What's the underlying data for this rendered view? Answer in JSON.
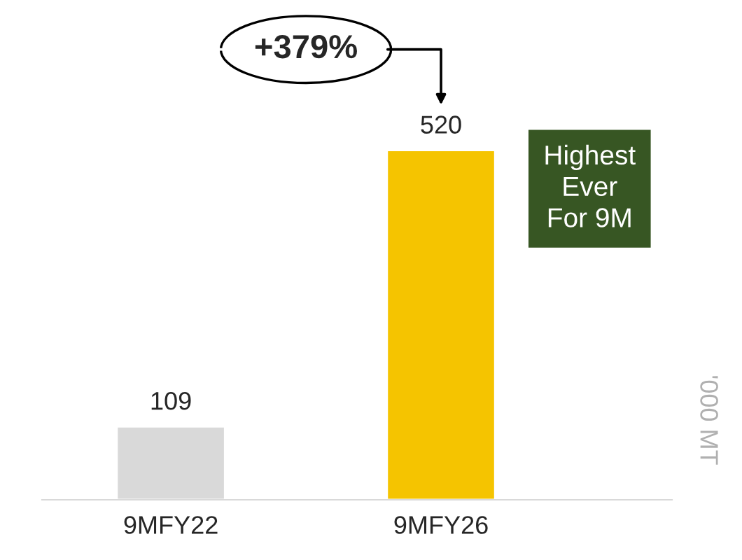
{
  "chart_data": {
    "type": "bar",
    "categories": [
      "9MFY22",
      "9MFY26"
    ],
    "values": [
      109,
      520
    ],
    "colors": [
      "#d9d9d9",
      "#f5c400"
    ],
    "data_labels": true,
    "ylabel": "'000 MT",
    "annotations": [
      "+379%",
      "Highest\nEver\nFor 9M"
    ]
  }
}
